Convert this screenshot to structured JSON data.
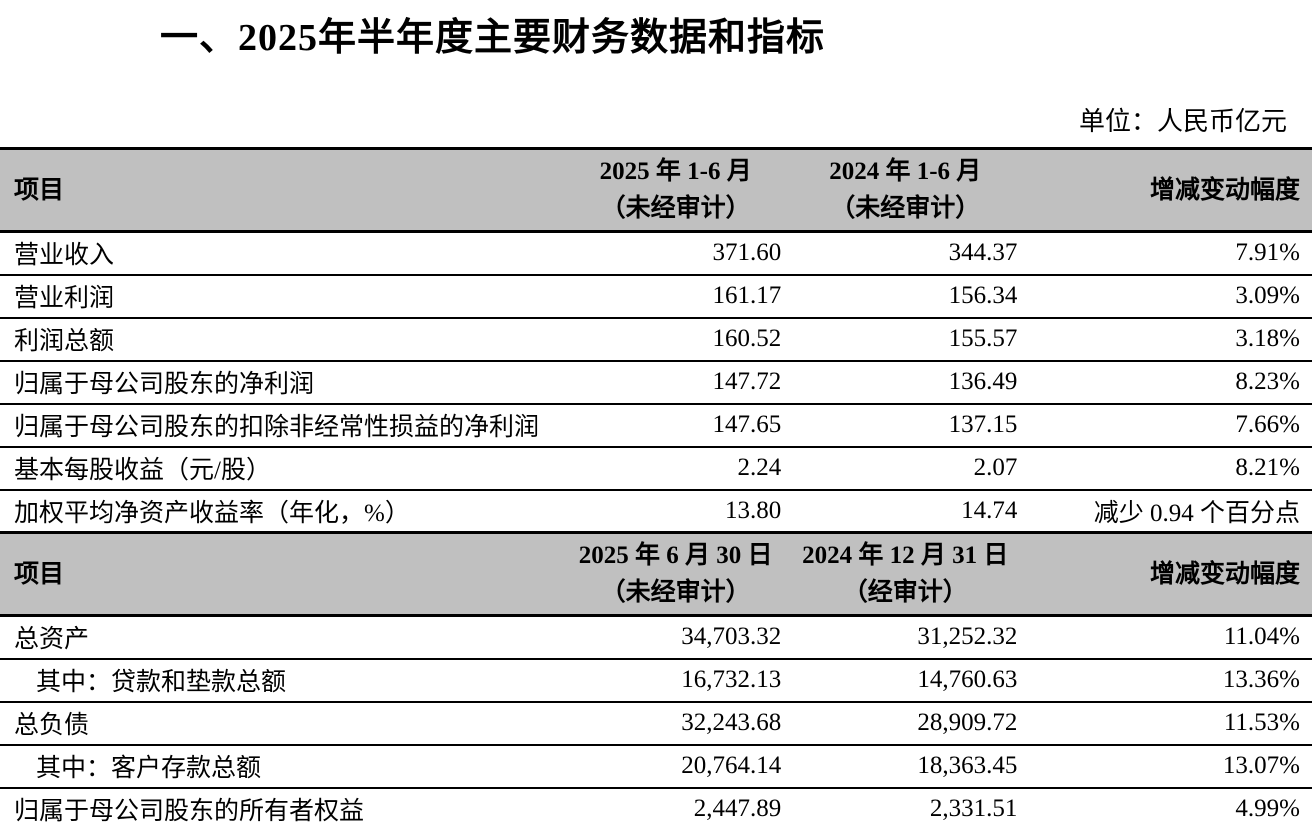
{
  "page": {
    "title": "一、2025年半年度主要财务数据和指标",
    "unit_note": "单位：人民币亿元"
  },
  "colors": {
    "header_bg": "#c0c0c0",
    "border": "#000000",
    "text": "#000000",
    "page_bg": "#ffffff"
  },
  "income_table": {
    "header": {
      "item": "项目",
      "period_current_line1": "2025 年 1-6 月",
      "period_current_line2": "（未经审计）",
      "period_prior_line1": "2024 年 1-6 月",
      "period_prior_line2": "（未经审计）",
      "change": "增减变动幅度"
    },
    "rows": [
      {
        "item": "营业收入",
        "current": "371.60",
        "prior": "344.37",
        "change": "7.91%"
      },
      {
        "item": "营业利润",
        "current": "161.17",
        "prior": "156.34",
        "change": "3.09%"
      },
      {
        "item": "利润总额",
        "current": "160.52",
        "prior": "155.57",
        "change": "3.18%"
      },
      {
        "item": "归属于母公司股东的净利润",
        "current": "147.72",
        "prior": "136.49",
        "change": "8.23%"
      },
      {
        "item": "归属于母公司股东的扣除非经常性损益的净利润",
        "current": "147.65",
        "prior": "137.15",
        "change": "7.66%"
      },
      {
        "item": "基本每股收益（元/股）",
        "current": "2.24",
        "prior": "2.07",
        "change": "8.21%"
      },
      {
        "item": "加权平均净资产收益率（年化，%）",
        "current": "13.80",
        "prior": "14.74",
        "change": "减少 0.94 个百分点"
      }
    ]
  },
  "balance_table": {
    "header": {
      "item": "项目",
      "period_current_line1": "2025 年 6 月 30 日",
      "period_current_line2": "（未经审计）",
      "period_prior_line1": "2024 年 12 月 31 日",
      "period_prior_line2": "（经审计）",
      "change": "增减变动幅度"
    },
    "rows": [
      {
        "item": "总资产",
        "current": "34,703.32",
        "prior": "31,252.32",
        "change": "11.04%"
      },
      {
        "item": "其中：贷款和垫款总额",
        "current": "16,732.13",
        "prior": "14,760.63",
        "change": "13.36%"
      },
      {
        "item": "总负债",
        "current": "32,243.68",
        "prior": "28,909.72",
        "change": "11.53%"
      },
      {
        "item": "其中：客户存款总额",
        "current": "20,764.14",
        "prior": "18,363.45",
        "change": "13.07%"
      },
      {
        "item": "归属于母公司股东的所有者权益",
        "current": "2,447.89",
        "prior": "2,331.51",
        "change": "4.99%"
      }
    ]
  }
}
